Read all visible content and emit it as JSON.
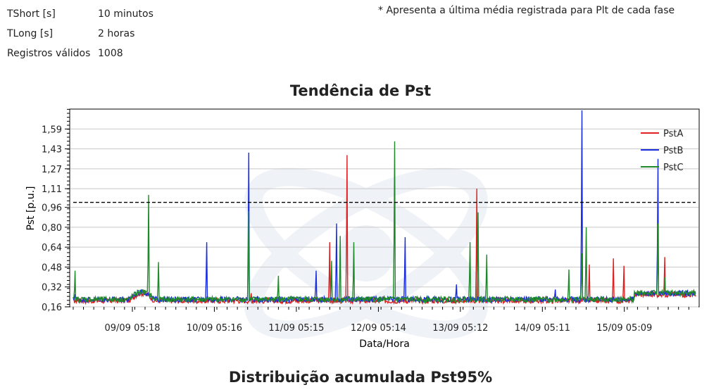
{
  "info": {
    "rows": [
      {
        "label": "TShort [s]",
        "value": "10 minutos"
      },
      {
        "label": "TLong [s]",
        "value": "2 horas"
      },
      {
        "label": "Registros válidos",
        "value": "1008"
      }
    ],
    "note": "* Apresenta a última média registrada para Plt de cada fase"
  },
  "chart_data": {
    "type": "line",
    "title": "Tendência de Pst",
    "xlabel": "Data/Hora",
    "ylabel": "Pst [p.u.]",
    "xlim": [
      "08/09 12:00",
      "16/09 02:00"
    ],
    "ylim": [
      0.16,
      1.75
    ],
    "x_tick_labels": [
      "09/09 05:18",
      "10/09 05:16",
      "11/09 05:15",
      "12/09 05:14",
      "13/09 05:12",
      "14/09 05:11",
      "15/09 05:09"
    ],
    "y_tick_labels": [
      "0,16",
      "0,32",
      "0,48",
      "0,64",
      "0,80",
      "0,96",
      "1,11",
      "1,27",
      "1,43",
      "1,59"
    ],
    "y_tick_values": [
      0.16,
      0.32,
      0.48,
      0.64,
      0.8,
      0.96,
      1.11,
      1.27,
      1.43,
      1.59
    ],
    "limit_line": 1.0,
    "grid": "horizontal",
    "legend_position": "top-right",
    "series": [
      {
        "name": "PstA",
        "color": "#e02020",
        "baseline": 0.21,
        "peaks": [
          [
            "09/09 05:18",
            0.26
          ],
          [
            "10/09 16:00",
            0.27
          ],
          [
            "11/09 15:00",
            0.68
          ],
          [
            "11/09 20:00",
            1.38
          ],
          [
            "13/09 10:00",
            1.11
          ],
          [
            "14/09 19:00",
            0.5
          ],
          [
            "15/09 02:00",
            0.55
          ],
          [
            "15/09 05:00",
            0.49
          ],
          [
            "15/09 17:00",
            0.56
          ]
        ]
      },
      {
        "name": "PstB",
        "color": "#1a2ee0",
        "baseline": 0.22,
        "peaks": [
          [
            "08/09 12:30",
            0.26
          ],
          [
            "10/09 03:00",
            0.68
          ],
          [
            "10/09 15:20",
            1.4
          ],
          [
            "11/09 11:00",
            0.45
          ],
          [
            "11/09 17:00",
            0.83
          ],
          [
            "12/09 13:00",
            0.72
          ],
          [
            "13/09 04:00",
            0.34
          ],
          [
            "14/09 09:00",
            0.3
          ],
          [
            "14/09 16:50",
            1.74
          ],
          [
            "15/09 15:00",
            1.35
          ]
        ]
      },
      {
        "name": "PstC",
        "color": "#1f8a2a",
        "baseline": 0.22,
        "peaks": [
          [
            "08/09 12:30",
            0.45
          ],
          [
            "09/09 10:00",
            1.06
          ],
          [
            "09/09 13:00",
            0.52
          ],
          [
            "10/09 15:20",
            0.93
          ],
          [
            "11/09 00:00",
            0.41
          ],
          [
            "11/09 15:30",
            0.53
          ],
          [
            "11/09 18:00",
            0.73
          ],
          [
            "11/09 22:00",
            0.68
          ],
          [
            "12/09 10:00",
            1.49
          ],
          [
            "13/09 08:00",
            0.68
          ],
          [
            "13/09 10:20",
            0.92
          ],
          [
            "13/09 13:00",
            0.58
          ],
          [
            "14/09 13:00",
            0.46
          ],
          [
            "14/09 16:50",
            0.59
          ],
          [
            "14/09 18:00",
            0.8
          ],
          [
            "15/09 15:00",
            0.83
          ],
          [
            "15/09 17:00",
            0.4
          ]
        ]
      }
    ]
  },
  "section2": {
    "title": "Distribuição acumulada Pst95%"
  },
  "colors": {
    "limit": "#000000",
    "grid": "#c8c8c8",
    "axis": "#000000"
  }
}
